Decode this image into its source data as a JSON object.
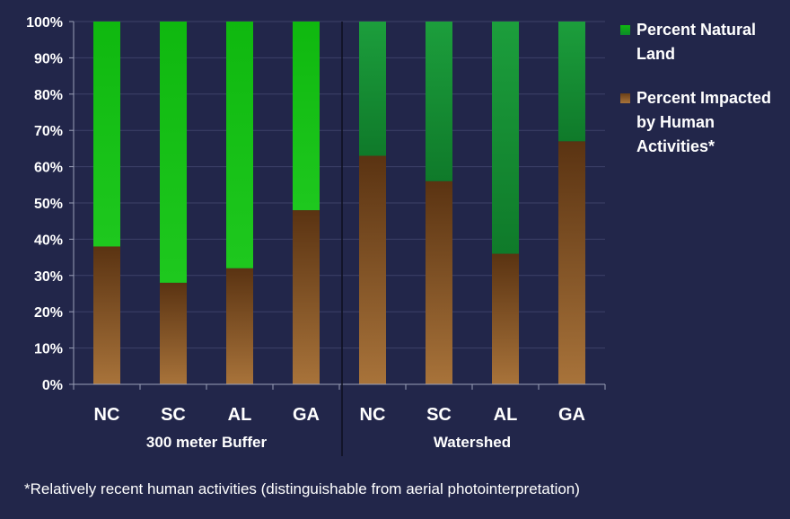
{
  "chart_data": {
    "type": "bar",
    "stacked": true,
    "y_axis": {
      "ticks": [
        "0%",
        "10%",
        "20%",
        "30%",
        "40%",
        "50%",
        "60%",
        "70%",
        "80%",
        "90%",
        "100%"
      ],
      "ylim": [
        0,
        100
      ],
      "unit": "%"
    },
    "groups": [
      {
        "label": "300 meter Buffer",
        "categories": [
          "NC",
          "SC",
          "AL",
          "GA"
        ]
      },
      {
        "label": "Watershed",
        "categories": [
          "NC",
          "SC",
          "AL",
          "GA"
        ]
      }
    ],
    "categories": [
      "NC",
      "SC",
      "AL",
      "GA",
      "NC",
      "SC",
      "AL",
      "GA"
    ],
    "series": [
      {
        "name": "Percent Impacted by Human Activities*",
        "name_lines": [
          "Percent Impacted",
          "by Human",
          "Activities*"
        ],
        "color": "#7a4a1e",
        "values": [
          38,
          28,
          32,
          48,
          63,
          56,
          36,
          67
        ]
      },
      {
        "name": "Percent Natural Land",
        "name_lines": [
          "Percent Natural",
          "Land"
        ],
        "color": "#1fc01f",
        "values": [
          62,
          72,
          68,
          52,
          37,
          44,
          64,
          33
        ]
      }
    ],
    "legend_position": "right",
    "footnote": "*Relatively recent human activities (distinguishable from aerial photointerpretation)"
  }
}
